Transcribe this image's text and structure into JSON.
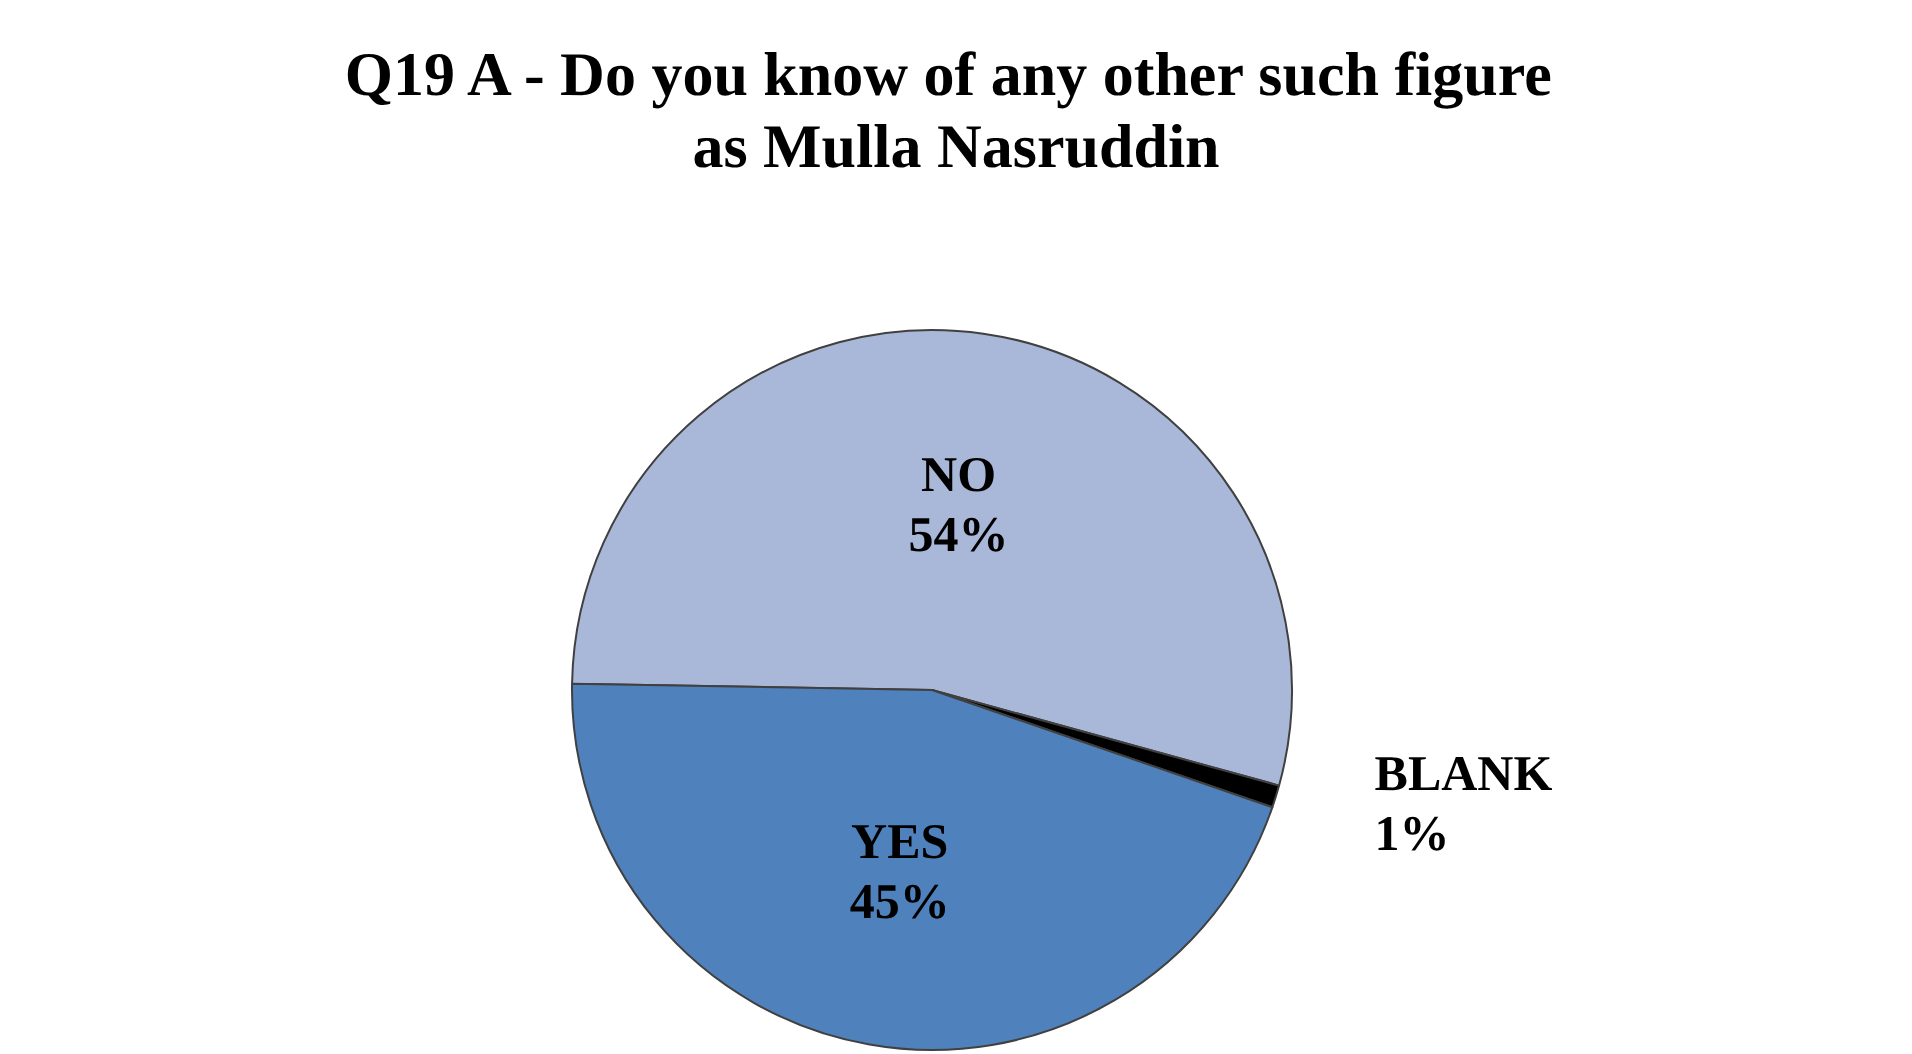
{
  "chart_data": {
    "type": "pie",
    "title": "Q19 A - Do you know of any other such figure as Mulla Nasruddin",
    "categories": [
      "NO",
      "BLANK",
      "YES"
    ],
    "values": [
      54,
      1,
      45
    ],
    "colors": [
      "#a9b8d8",
      "#000000",
      "#4f81bd"
    ],
    "value_labels": [
      "54%",
      "1%",
      "45%"
    ],
    "legend": false
  }
}
